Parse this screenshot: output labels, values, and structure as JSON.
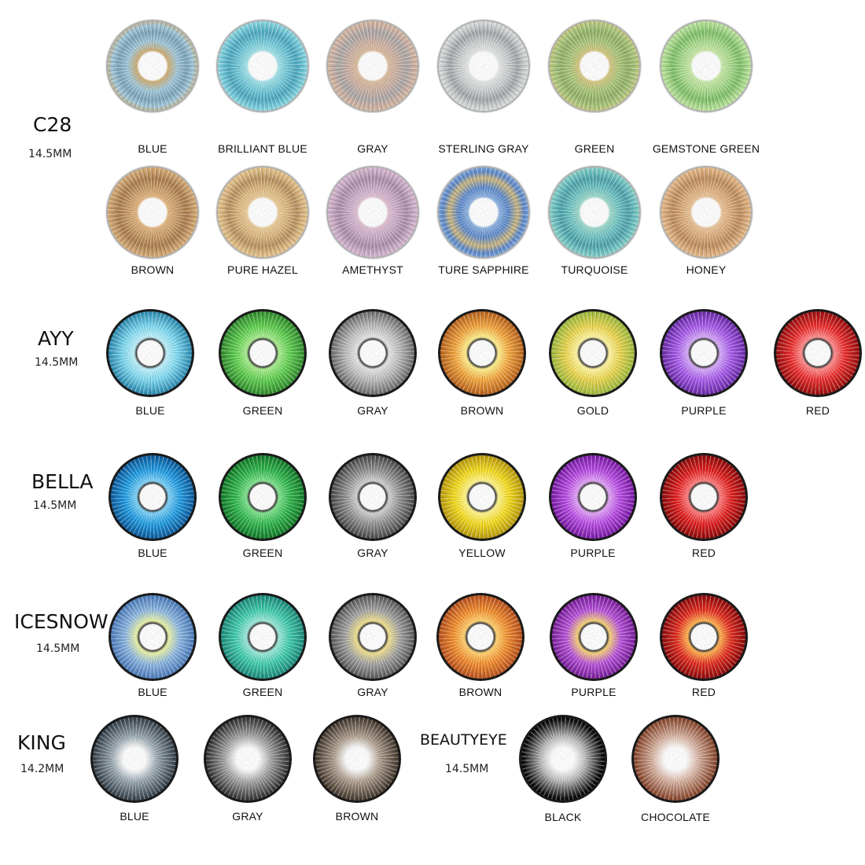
{
  "series": [
    {
      "name": "C28",
      "size": "14.5MM",
      "style": "soft",
      "rows": [
        [
          {
            "label": "BLUE",
            "colors": [
              "#9fc4d6",
              "#c9a86a",
              "#7aa2b8"
            ]
          },
          {
            "label": "BRILLIANT BLUE",
            "colors": [
              "#6fc6d6",
              "#9fe0e6",
              "#4aa6bc"
            ]
          },
          {
            "label": "GRAY",
            "colors": [
              "#c9ada0",
              "#d8b89a",
              "#a8a4a4"
            ]
          },
          {
            "label": "STERLING GRAY",
            "colors": [
              "#c8cccc",
              "#e2e4e4",
              "#9ea4a6"
            ]
          },
          {
            "label": "GREEN",
            "colors": [
              "#a8c478",
              "#d2c27a",
              "#8fae66"
            ]
          },
          {
            "label": "GEMSTONE GREEN",
            "colors": [
              "#a6d88a",
              "#c6e6a4",
              "#7cbc66"
            ]
          }
        ],
        [
          {
            "label": "BROWN",
            "colors": [
              "#c69a66",
              "#e0b27a",
              "#a87a4c"
            ]
          },
          {
            "label": "PURE HAZEL",
            "colors": [
              "#d8b47c",
              "#e8c894",
              "#b48e5c"
            ]
          },
          {
            "label": "AMETHYST",
            "colors": [
              "#c8a8c4",
              "#dcbcd0",
              "#a88ca6"
            ]
          },
          {
            "label": "TURE SAPPHIRE",
            "colors": [
              "#5a86c8",
              "#8ab0de",
              "#c8b27a"
            ]
          },
          {
            "label": "TURQUOISE",
            "colors": [
              "#6cc0c0",
              "#9ad6c8",
              "#4aa0a8"
            ]
          },
          {
            "label": "HONEY",
            "colors": [
              "#d8a876",
              "#e8c094",
              "#bc8a5c"
            ]
          }
        ]
      ]
    },
    {
      "name": "AYY",
      "size": "14.5MM",
      "style": "vivid",
      "rows": [
        [
          {
            "label": "BLUE",
            "colors": [
              "#7ad6ee",
              "#bdf0fa",
              "#2a8ab0"
            ]
          },
          {
            "label": "GREEN",
            "colors": [
              "#5ccc4c",
              "#a6ec8a",
              "#2e8a2a"
            ]
          },
          {
            "label": "GRAY",
            "colors": [
              "#b8b8b8",
              "#e4e4e4",
              "#6c6c6c"
            ]
          },
          {
            "label": "BROWN",
            "colors": [
              "#f0a23a",
              "#fff08a",
              "#b8621a"
            ]
          },
          {
            "label": "GOLD",
            "colors": [
              "#e8d24a",
              "#fff6a0",
              "#9cb83a"
            ]
          },
          {
            "label": "PURPLE",
            "colors": [
              "#a458e8",
              "#d4a8f8",
              "#6a2aa8"
            ]
          },
          {
            "label": "RED",
            "colors": [
              "#e82a2a",
              "#ff8a8a",
              "#9a0e0e"
            ]
          }
        ]
      ]
    },
    {
      "name": "BELLA",
      "size": "14.5MM",
      "style": "vivid",
      "rows": [
        [
          {
            "label": "BLUE",
            "colors": [
              "#1e9ae0",
              "#7cd0f6",
              "#0a5a9c"
            ]
          },
          {
            "label": "GREEN",
            "colors": [
              "#2eb44a",
              "#7ce08a",
              "#107a26"
            ]
          },
          {
            "label": "GRAY",
            "colors": [
              "#8e8e8e",
              "#d0d0d0",
              "#4a4a4a"
            ]
          },
          {
            "label": "YELLOW",
            "colors": [
              "#f2d81a",
              "#fff48a",
              "#b89a0a"
            ]
          },
          {
            "label": "PURPLE",
            "colors": [
              "#b448e0",
              "#e0a0f6",
              "#7a1aa6"
            ]
          },
          {
            "label": "RED",
            "colors": [
              "#e01e1e",
              "#ff7a7a",
              "#8e0a0a"
            ]
          }
        ]
      ]
    },
    {
      "name": "ICESNOW",
      "size": "14.5MM",
      "style": "vivid",
      "rows": [
        [
          {
            "label": "BLUE",
            "colors": [
              "#8ab4e0",
              "#e8f2a0",
              "#4a7ab8"
            ]
          },
          {
            "label": "GREEN",
            "colors": [
              "#3cc8a8",
              "#9ae8d8",
              "#1a8a7a"
            ]
          },
          {
            "label": "GRAY",
            "colors": [
              "#a0a0a0",
              "#f0e08a",
              "#5a5a5a"
            ]
          },
          {
            "label": "BROWN",
            "colors": [
              "#f08a2a",
              "#ffd06a",
              "#b8501a"
            ]
          },
          {
            "label": "PURPLE",
            "colors": [
              "#b450d8",
              "#f6d070",
              "#7a1e9c"
            ]
          },
          {
            "label": "RED",
            "colors": [
              "#e02a1e",
              "#ffb04a",
              "#8e0a0a"
            ]
          }
        ]
      ]
    },
    {
      "name": "KING",
      "size": "14.2MM",
      "style": "dark",
      "rows": [
        [
          {
            "label": "BLUE",
            "colors": [
              "#3a4650",
              "#9aa8b0",
              "#1e262c"
            ]
          },
          {
            "label": "GRAY",
            "colors": [
              "#3a3a3a",
              "#a8a8a8",
              "#1a1a1a"
            ]
          },
          {
            "label": "BROWN",
            "colors": [
              "#4a3e32",
              "#b0a090",
              "#241c16"
            ]
          }
        ]
      ]
    },
    {
      "name": "BEAUTYEYE",
      "size": "14.5MM",
      "style": "dark",
      "rows": [
        [
          {
            "label": "BLACK",
            "colors": [
              "#0a0a0a",
              "#b8b8b8",
              "#000000"
            ]
          },
          {
            "label": "CHOCOLATE",
            "colors": [
              "#8a4a30",
              "#d8b4a4",
              "#5a2a1a"
            ]
          }
        ]
      ]
    }
  ]
}
